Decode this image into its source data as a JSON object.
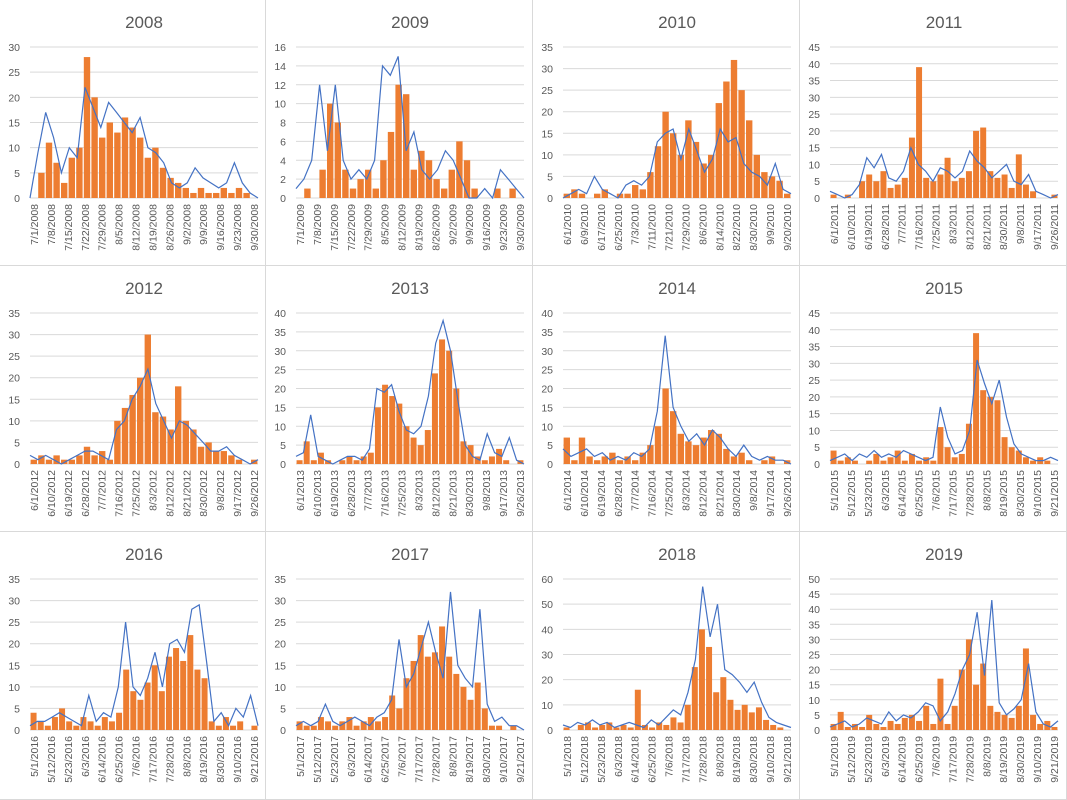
{
  "colors": {
    "bars": "#ED7D31",
    "line": "#4472C4",
    "grid": "#D9D9D9"
  },
  "chart_data": [
    {
      "type": "bar+line",
      "title": "2008",
      "ylim": [
        0,
        30
      ],
      "ystep": 5,
      "xticks": [
        "7/1/2008",
        "7/8/2008",
        "7/15/2008",
        "7/22/2008",
        "7/29/2008",
        "8/5/2008",
        "8/12/2008",
        "8/19/2008",
        "8/26/2008",
        "9/2/2008",
        "9/9/2008",
        "9/16/2008",
        "9/23/2008",
        "9/30/2008"
      ],
      "bars": [
        0,
        5,
        11,
        7,
        3,
        8,
        10,
        28,
        20,
        12,
        15,
        13,
        16,
        14,
        12,
        8,
        10,
        6,
        4,
        3,
        2,
        1,
        2,
        1,
        1,
        2,
        1,
        2,
        1,
        0
      ],
      "line": [
        0,
        9,
        17,
        12,
        5,
        10,
        8,
        22,
        18,
        14,
        19,
        17,
        15,
        13,
        16,
        10,
        9,
        7,
        3,
        2,
        3,
        6,
        4,
        3,
        2,
        3,
        7,
        3,
        1,
        0
      ]
    },
    {
      "type": "bar+line",
      "title": "2009",
      "ylim": [
        0,
        16
      ],
      "ystep": 2,
      "xticks": [
        "7/1/2009",
        "7/8/2009",
        "7/15/2009",
        "7/22/2009",
        "7/29/2009",
        "8/5/2009",
        "8/12/2009",
        "8/19/2009",
        "8/26/2009",
        "9/2/2009",
        "9/9/2009",
        "9/16/2009",
        "9/23/2009",
        "9/30/2009"
      ],
      "bars": [
        0,
        1,
        0,
        3,
        10,
        8,
        3,
        1,
        2,
        3,
        1,
        4,
        7,
        12,
        11,
        3,
        5,
        4,
        2,
        1,
        3,
        6,
        4,
        1,
        0,
        0,
        1,
        0,
        1,
        0
      ],
      "line": [
        1,
        2,
        4,
        12,
        5,
        12,
        4,
        2,
        3,
        2,
        4,
        14,
        13,
        15,
        5,
        7,
        3,
        2,
        3,
        5,
        4,
        2,
        0,
        0,
        1,
        0,
        3,
        2,
        1,
        0
      ]
    },
    {
      "type": "bar+line",
      "title": "2010",
      "ylim": [
        0,
        35
      ],
      "ystep": 5,
      "xticks": [
        "6/1/2010",
        "6/9/2010",
        "6/17/2010",
        "6/25/2010",
        "7/3/2010",
        "7/11/2010",
        "7/21/2010",
        "7/29/2010",
        "8/6/2010",
        "8/14/2010",
        "8/22/2010",
        "8/30/2010",
        "9/9/2010",
        "9/20/2010"
      ],
      "bars": [
        1,
        2,
        1,
        0,
        1,
        2,
        0,
        1,
        1,
        3,
        2,
        6,
        12,
        20,
        15,
        10,
        18,
        13,
        8,
        10,
        22,
        27,
        32,
        25,
        18,
        10,
        6,
        5,
        4,
        1
      ],
      "line": [
        0,
        1,
        2,
        1,
        5,
        2,
        1,
        0,
        3,
        4,
        3,
        5,
        13,
        15,
        16,
        9,
        16,
        11,
        6,
        9,
        16,
        13,
        14,
        8,
        6,
        5,
        3,
        8,
        2,
        1
      ]
    },
    {
      "type": "bar+line",
      "title": "2011",
      "ylim": [
        0,
        45
      ],
      "ystep": 5,
      "xticks": [
        "6/1/2011",
        "6/10/2011",
        "6/19/2011",
        "6/28/2011",
        "7/7/2011",
        "7/16/2011",
        "7/25/2011",
        "8/3/2011",
        "8/12/2011",
        "8/21/2011",
        "8/30/2011",
        "9/8/2011",
        "9/17/2011",
        "9/26/2011"
      ],
      "bars": [
        1,
        0,
        1,
        0,
        5,
        7,
        5,
        8,
        3,
        4,
        6,
        18,
        39,
        6,
        5,
        7,
        12,
        5,
        6,
        8,
        20,
        21,
        8,
        6,
        7,
        3,
        13,
        4,
        2,
        0,
        0,
        1
      ],
      "line": [
        2,
        1,
        0,
        1,
        4,
        12,
        9,
        13,
        6,
        5,
        8,
        15,
        10,
        8,
        5,
        9,
        8,
        6,
        8,
        14,
        11,
        9,
        6,
        8,
        10,
        5,
        4,
        7,
        2,
        1,
        0,
        1
      ]
    },
    {
      "type": "bar+line",
      "title": "2012",
      "ylim": [
        0,
        35
      ],
      "ystep": 5,
      "xticks": [
        "6/1/2012",
        "6/10/2012",
        "6/19/2012",
        "6/28/2012",
        "7/7/2012",
        "7/16/2012",
        "7/25/2012",
        "8/3/2012",
        "8/12/2012",
        "8/21/2012",
        "8/30/2012",
        "9/8/2012",
        "9/17/2012",
        "9/26/2012"
      ],
      "bars": [
        1,
        2,
        1,
        2,
        1,
        1,
        2,
        4,
        2,
        3,
        1,
        10,
        13,
        16,
        20,
        30,
        12,
        11,
        8,
        18,
        10,
        8,
        4,
        5,
        3,
        3,
        2,
        1,
        0,
        1
      ],
      "line": [
        2,
        1,
        2,
        1,
        0,
        1,
        2,
        3,
        3,
        2,
        1,
        8,
        10,
        15,
        18,
        22,
        14,
        10,
        6,
        10,
        9,
        7,
        5,
        3,
        3,
        4,
        2,
        1,
        0,
        1
      ]
    },
    {
      "type": "bar+line",
      "title": "2013",
      "ylim": [
        0,
        40
      ],
      "ystep": 5,
      "xticks": [
        "6/1/2013",
        "6/10/2013",
        "6/19/2013",
        "6/28/2013",
        "7/7/2013",
        "7/16/2013",
        "7/25/2013",
        "8/3/2013",
        "8/12/2013",
        "8/21/2013",
        "8/30/2013",
        "9/8/2013",
        "9/17/2013",
        "9/26/2013"
      ],
      "bars": [
        1,
        6,
        1,
        3,
        1,
        0,
        1,
        2,
        1,
        2,
        3,
        15,
        21,
        18,
        16,
        10,
        7,
        5,
        9,
        24,
        33,
        30,
        20,
        6,
        5,
        2,
        1,
        2,
        4,
        1,
        0,
        1
      ],
      "line": [
        2,
        3,
        13,
        2,
        1,
        0,
        1,
        2,
        2,
        1,
        4,
        20,
        19,
        21,
        14,
        9,
        8,
        10,
        18,
        32,
        38,
        30,
        17,
        5,
        2,
        1,
        8,
        3,
        2,
        7,
        1,
        0
      ]
    },
    {
      "type": "bar+line",
      "title": "2014",
      "ylim": [
        0,
        40
      ],
      "ystep": 5,
      "xticks": [
        "6/1/2014",
        "6/10/2014",
        "6/19/2014",
        "6/28/2014",
        "7/7/2014",
        "7/16/2014",
        "7/25/2014",
        "8/3/2014",
        "8/12/2014",
        "8/21/2014",
        "8/30/2014",
        "9/8/2014",
        "9/17/2014",
        "9/26/2014"
      ],
      "bars": [
        7,
        1,
        7,
        2,
        1,
        2,
        3,
        1,
        2,
        1,
        3,
        5,
        10,
        20,
        14,
        8,
        6,
        5,
        7,
        9,
        8,
        4,
        2,
        3,
        1,
        0,
        1,
        2,
        0,
        1
      ],
      "line": [
        4,
        2,
        3,
        4,
        2,
        3,
        1,
        2,
        1,
        3,
        2,
        4,
        14,
        34,
        15,
        10,
        6,
        8,
        5,
        9,
        7,
        4,
        2,
        5,
        2,
        1,
        2,
        1,
        1,
        0
      ]
    },
    {
      "type": "bar+line",
      "title": "2015",
      "ylim": [
        0,
        45
      ],
      "ystep": 5,
      "xticks": [
        "5/1/2015",
        "5/12/2015",
        "5/23/2015",
        "6/3/2015",
        "6/14/2015",
        "6/25/2015",
        "7/6/2015",
        "7/17/2015",
        "7/28/2015",
        "8/8/2015",
        "8/19/2015",
        "8/30/2015",
        "9/10/2015",
        "9/21/2015"
      ],
      "bars": [
        4,
        1,
        2,
        1,
        0,
        1,
        3,
        1,
        2,
        4,
        1,
        3,
        1,
        2,
        1,
        11,
        5,
        2,
        3,
        12,
        39,
        22,
        20,
        19,
        8,
        5,
        4,
        2,
        1,
        2,
        1,
        0
      ],
      "line": [
        1,
        2,
        3,
        1,
        3,
        2,
        4,
        2,
        3,
        2,
        4,
        3,
        2,
        1,
        2,
        17,
        8,
        3,
        4,
        10,
        31,
        24,
        18,
        25,
        14,
        6,
        3,
        2,
        1,
        1,
        2,
        1
      ]
    },
    {
      "type": "bar+line",
      "title": "2016",
      "ylim": [
        0,
        35
      ],
      "ystep": 5,
      "xticks": [
        "5/1/2016",
        "5/12/2016",
        "5/23/2016",
        "6/3/2016",
        "6/14/2016",
        "6/25/2016",
        "7/6/2016",
        "7/17/2016",
        "7/28/2016",
        "8/8/2016",
        "8/19/2016",
        "8/30/2016",
        "9/10/2016",
        "9/21/2016"
      ],
      "bars": [
        4,
        2,
        1,
        3,
        5,
        2,
        1,
        3,
        2,
        1,
        3,
        2,
        4,
        14,
        9,
        7,
        11,
        15,
        9,
        17,
        19,
        16,
        22,
        14,
        12,
        2,
        1,
        3,
        1,
        2,
        0,
        1
      ],
      "line": [
        1,
        2,
        2,
        3,
        4,
        3,
        2,
        1,
        8,
        2,
        4,
        3,
        10,
        25,
        10,
        8,
        12,
        18,
        10,
        20,
        21,
        18,
        28,
        29,
        16,
        2,
        4,
        1,
        5,
        3,
        8,
        1
      ]
    },
    {
      "type": "bar+line",
      "title": "2017",
      "ylim": [
        0,
        35
      ],
      "ystep": 5,
      "xticks": [
        "5/1/2017",
        "5/12/2017",
        "5/23/2017",
        "6/3/2017",
        "6/14/2017",
        "6/25/2017",
        "7/6/2017",
        "7/17/2017",
        "7/28/2017",
        "8/8/2017",
        "8/19/2017",
        "8/30/2017",
        "9/10/2017",
        "9/21/2017"
      ],
      "bars": [
        2,
        1,
        1,
        3,
        2,
        1,
        2,
        3,
        1,
        2,
        3,
        2,
        3,
        8,
        5,
        12,
        16,
        22,
        17,
        18,
        24,
        17,
        13,
        10,
        7,
        11,
        5,
        1,
        1,
        0,
        1,
        0
      ],
      "line": [
        1,
        2,
        1,
        2,
        6,
        2,
        1,
        2,
        3,
        2,
        1,
        3,
        4,
        7,
        21,
        10,
        13,
        19,
        25,
        18,
        12,
        32,
        15,
        12,
        10,
        28,
        6,
        2,
        3,
        1,
        1,
        0
      ]
    },
    {
      "type": "bar+line",
      "title": "2018",
      "ylim": [
        0,
        60
      ],
      "ystep": 10,
      "xticks": [
        "5/1/2018",
        "5/12/2018",
        "5/23/2018",
        "6/3/2018",
        "6/14/2018",
        "6/25/2018",
        "7/6/2018",
        "7/17/2018",
        "7/28/2018",
        "8/8/2018",
        "8/19/2018",
        "8/30/2018",
        "9/10/2018",
        "9/21/2018"
      ],
      "bars": [
        1,
        0,
        2,
        3,
        1,
        2,
        3,
        1,
        2,
        1,
        16,
        2,
        1,
        3,
        2,
        5,
        3,
        10,
        25,
        40,
        33,
        15,
        21,
        12,
        8,
        10,
        7,
        9,
        4,
        2,
        1,
        0
      ],
      "line": [
        2,
        1,
        3,
        2,
        4,
        2,
        3,
        1,
        2,
        3,
        2,
        1,
        4,
        2,
        5,
        8,
        6,
        15,
        28,
        57,
        37,
        50,
        24,
        22,
        19,
        15,
        19,
        11,
        5,
        3,
        2,
        1
      ]
    },
    {
      "type": "bar+line",
      "title": "2019",
      "ylim": [
        0,
        50
      ],
      "ystep": 5,
      "xticks": [
        "5/1/2019",
        "5/12/2019",
        "5/23/2019",
        "6/3/2019",
        "6/14/2019",
        "6/25/2019",
        "7/6/2019",
        "7/17/2019",
        "7/28/2019",
        "8/8/2019",
        "8/19/2019",
        "8/30/2019",
        "9/10/2019",
        "9/21/2019"
      ],
      "bars": [
        2,
        6,
        1,
        2,
        1,
        5,
        2,
        1,
        3,
        2,
        4,
        5,
        3,
        8,
        2,
        17,
        2,
        8,
        20,
        30,
        15,
        22,
        8,
        6,
        5,
        4,
        8,
        27,
        5,
        2,
        3,
        1
      ],
      "line": [
        1,
        2,
        3,
        1,
        2,
        4,
        3,
        2,
        6,
        3,
        5,
        4,
        6,
        9,
        8,
        3,
        6,
        12,
        20,
        25,
        39,
        18,
        43,
        9,
        5,
        7,
        10,
        22,
        6,
        2,
        1,
        3
      ]
    }
  ]
}
